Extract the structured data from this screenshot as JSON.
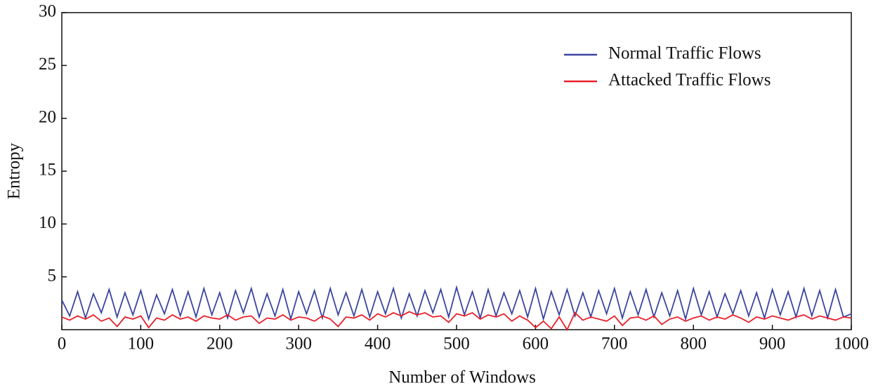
{
  "chart_data": {
    "type": "line",
    "xlabel": "Number of Windows",
    "ylabel": "Entropy",
    "x": [
      0,
      10,
      20,
      30,
      40,
      50,
      60,
      70,
      80,
      90,
      100,
      110,
      120,
      130,
      140,
      150,
      160,
      170,
      180,
      190,
      200,
      210,
      220,
      230,
      240,
      250,
      260,
      270,
      280,
      290,
      300,
      310,
      320,
      330,
      340,
      350,
      360,
      370,
      380,
      390,
      400,
      410,
      420,
      430,
      440,
      450,
      460,
      470,
      480,
      490,
      500,
      510,
      520,
      530,
      540,
      550,
      560,
      570,
      580,
      590,
      600,
      610,
      620,
      630,
      640,
      650,
      660,
      670,
      680,
      690,
      700,
      710,
      720,
      730,
      740,
      750,
      760,
      770,
      780,
      790,
      800,
      810,
      820,
      830,
      840,
      850,
      860,
      870,
      880,
      890,
      900,
      910,
      920,
      930,
      940,
      950,
      960,
      970,
      980,
      990,
      1000
    ],
    "series": [
      {
        "name": "Normal Traffic Flows",
        "color": "#3b45a0",
        "values": [
          2.8,
          1.3,
          3.6,
          1.1,
          3.4,
          1.6,
          3.8,
          1.2,
          3.5,
          1.4,
          3.7,
          1.0,
          3.3,
          1.5,
          3.8,
          1.3,
          3.6,
          1.2,
          3.9,
          1.4,
          3.5,
          1.1,
          3.7,
          1.6,
          3.9,
          1.2,
          3.4,
          1.3,
          3.8,
          1.0,
          3.6,
          1.5,
          3.7,
          1.1,
          3.9,
          1.4,
          3.5,
          1.3,
          3.8,
          1.2,
          3.6,
          1.5,
          3.9,
          1.1,
          3.4,
          1.3,
          3.7,
          1.6,
          3.8,
          1.2,
          4.0,
          1.4,
          3.6,
          1.1,
          3.8,
          1.3,
          3.5,
          1.5,
          3.7,
          1.2,
          3.9,
          1.0,
          3.6,
          1.4,
          3.8,
          1.3,
          3.5,
          1.2,
          3.7,
          1.5,
          3.9,
          1.1,
          3.6,
          1.4,
          3.8,
          1.2,
          3.5,
          1.3,
          3.7,
          1.0,
          3.9,
          1.4,
          3.6,
          1.2,
          3.4,
          1.5,
          3.7,
          1.3,
          3.5,
          1.1,
          3.8,
          1.4,
          3.6,
          1.2,
          3.9,
          1.3,
          3.7,
          1.1,
          3.8,
          1.2,
          1.5
        ]
      },
      {
        "name": "Attacked Traffic Flows",
        "color": "#e8202a",
        "values": [
          1.2,
          0.9,
          1.3,
          1.0,
          1.4,
          0.8,
          1.1,
          0.3,
          1.2,
          1.0,
          1.3,
          0.2,
          1.1,
          0.9,
          1.4,
          1.0,
          1.2,
          0.8,
          1.3,
          1.1,
          1.0,
          1.4,
          0.9,
          1.2,
          1.3,
          0.6,
          1.1,
          1.0,
          1.4,
          0.9,
          1.2,
          1.1,
          0.8,
          1.3,
          1.0,
          0.3,
          1.2,
          1.1,
          1.4,
          0.9,
          1.5,
          1.2,
          1.6,
          1.3,
          1.7,
          1.4,
          1.6,
          1.2,
          1.3,
          0.7,
          1.5,
          1.3,
          1.6,
          1.0,
          1.4,
          1.2,
          1.5,
          0.8,
          1.3,
          0.9,
          0.2,
          0.8,
          0.1,
          1.2,
          0.0,
          1.6,
          0.9,
          1.2,
          1.0,
          0.8,
          1.3,
          0.4,
          1.1,
          1.2,
          0.9,
          1.3,
          0.5,
          1.0,
          1.2,
          0.8,
          1.1,
          1.3,
          0.9,
          1.2,
          1.0,
          1.4,
          1.1,
          0.7,
          1.2,
          1.0,
          1.3,
          1.1,
          0.9,
          1.2,
          1.4,
          1.0,
          1.3,
          1.1,
          0.9,
          1.2,
          1.1
        ]
      }
    ],
    "xlim": [
      0,
      1000
    ],
    "xticks": [
      0,
      100,
      200,
      300,
      400,
      500,
      600,
      700,
      800,
      900,
      1000
    ],
    "ylim": [
      0,
      30
    ],
    "yticks": [
      5,
      10,
      15,
      20,
      25,
      30
    ],
    "legend": "upper right"
  }
}
